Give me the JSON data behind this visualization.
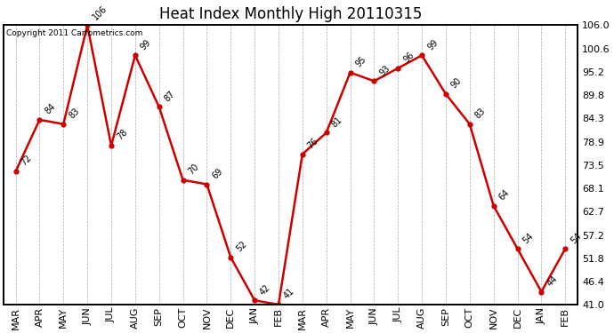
{
  "title": "Heat Index Monthly High 20110315",
  "copyright": "Copyright 2011 Carfometrics.com",
  "months": [
    "MAR",
    "APR",
    "MAY",
    "JUN",
    "JUL",
    "AUG",
    "SEP",
    "OCT",
    "NOV",
    "DEC",
    "JAN",
    "FEB",
    "MAR",
    "APR",
    "MAY",
    "JUN",
    "JUL",
    "AUG",
    "SEP",
    "OCT",
    "NOV",
    "DEC",
    "JAN",
    "FEB"
  ],
  "values": [
    72,
    84,
    83,
    106,
    78,
    99,
    87,
    70,
    69,
    52,
    42,
    41,
    76,
    81,
    95,
    93,
    96,
    99,
    90,
    83,
    64,
    54,
    44,
    54
  ],
  "line_color": "#cc0000",
  "marker": "o",
  "marker_color": "#cc0000",
  "marker_size": 3.5,
  "ylim": [
    41.0,
    106.0
  ],
  "yticks": [
    41.0,
    46.4,
    51.8,
    57.2,
    62.7,
    68.1,
    73.5,
    78.9,
    84.3,
    89.8,
    95.2,
    100.6,
    106.0
  ],
  "ytick_labels": [
    "41.0",
    "46.4",
    "51.8",
    "57.2",
    "62.7",
    "68.1",
    "73.5",
    "78.9",
    "84.3",
    "89.8",
    "95.2",
    "100.6",
    "106.0"
  ],
  "grid_color": "#aaaaaa",
  "bg_color": "#ffffff",
  "title_fontsize": 12,
  "label_fontsize": 7,
  "tick_fontsize": 8,
  "copyright_fontsize": 6.5,
  "linewidth": 1.8
}
